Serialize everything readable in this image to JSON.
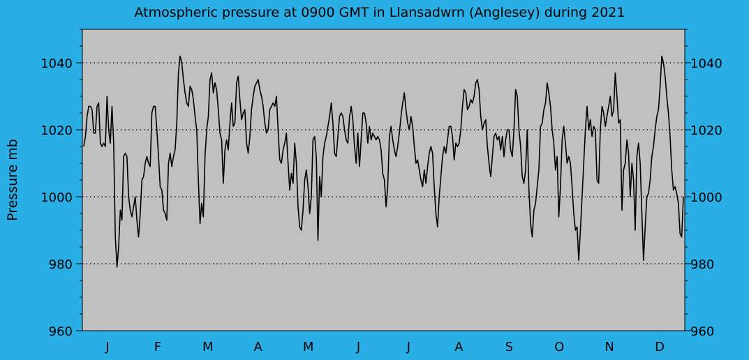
{
  "chart_data": {
    "type": "line",
    "title": "Atmospheric pressure at 0900 GMT in Llansadwrn (Anglesey) during 2021",
    "ylabel": "Pressure mb",
    "xlabel": "",
    "ylim": [
      960,
      1050
    ],
    "yticks": [
      960,
      980,
      1000,
      1020,
      1040
    ],
    "grid": "horizontal dotted",
    "month_labels": [
      "J",
      "F",
      "M",
      "A",
      "M",
      "J",
      "J",
      "A",
      "S",
      "O",
      "N",
      "D"
    ],
    "colors": {
      "background": "#29aee6",
      "plot": "#c0c0c0",
      "line": "#000000"
    },
    "series": [
      {
        "values": [
          1015,
          1018,
          1024,
          1027,
          1027,
          1026,
          1019,
          1019,
          1027,
          1028,
          1016,
          1015,
          1016,
          1015,
          1030,
          1020,
          1016,
          1027,
          1016,
          988,
          979,
          985,
          996,
          993,
          1012,
          1013,
          1012,
          1000,
          996,
          994,
          997,
          1000,
          993,
          988,
          995,
          1005,
          1006,
          1010,
          1012,
          1010,
          1009,
          1025,
          1027,
          1027,
          1020,
          1012,
          1003,
          1002,
          996,
          995,
          993,
          1010,
          1013,
          1009,
          1012,
          1014,
          1022,
          1037,
          1042,
          1040,
          1035,
          1031,
          1028,
          1027,
          1033,
          1032,
          1029,
          1024,
          1020,
          1005,
          992,
          998,
          994,
          1012,
          1020,
          1024,
          1035,
          1037,
          1031,
          1034,
          1032,
          1026,
          1019,
          1017,
          1004,
          1014,
          1017,
          1014,
          1022,
          1028,
          1021,
          1022,
          1034,
          1036,
          1029,
          1023,
          1025,
          1026,
          1016,
          1013,
          1018,
          1026,
          1030,
          1033,
          1034,
          1035,
          1032,
          1030,
          1027,
          1022,
          1019,
          1020,
          1026,
          1027,
          1028,
          1027,
          1030,
          1020,
          1011,
          1010,
          1014,
          1016,
          1019,
          1010,
          1002,
          1007,
          1004,
          1016,
          1010,
          997,
          991,
          990,
          996,
          1005,
          1008,
          1003,
          995,
          1000,
          1017,
          1018,
          1012,
          987,
          1006,
          1000,
          1012,
          1016,
          1018,
          1021,
          1024,
          1028,
          1022,
          1013,
          1012,
          1018,
          1024,
          1025,
          1024,
          1020,
          1017,
          1016,
          1024,
          1027,
          1023,
          1015,
          1010,
          1019,
          1009,
          1017,
          1025,
          1025,
          1022,
          1016,
          1021,
          1017,
          1019,
          1018,
          1017,
          1018,
          1017,
          1014,
          1007,
          1005,
          997,
          1003,
          1018,
          1021,
          1017,
          1014,
          1012,
          1015,
          1019,
          1024,
          1028,
          1031,
          1026,
          1022,
          1020,
          1024,
          1021,
          1015,
          1010,
          1011,
          1008,
          1005,
          1003,
          1008,
          1004,
          1009,
          1013,
          1015,
          1013,
          1003,
          995,
          991,
          1000,
          1006,
          1012,
          1015,
          1013,
          1017,
          1021,
          1021,
          1018,
          1011,
          1016,
          1015,
          1016,
          1020,
          1027,
          1032,
          1031,
          1026,
          1027,
          1029,
          1028,
          1030,
          1034,
          1035,
          1032,
          1024,
          1020,
          1022,
          1023,
          1015,
          1010,
          1006,
          1012,
          1018,
          1019,
          1017,
          1018,
          1014,
          1018,
          1012,
          1017,
          1020,
          1020,
          1014,
          1012,
          1020,
          1032,
          1030,
          1020,
          1015,
          1006,
          1004,
          1008,
          1020,
          1002,
          992,
          988,
          996,
          998,
          1003,
          1008,
          1021,
          1022,
          1026,
          1028,
          1034,
          1031,
          1027,
          1020,
          1016,
          1008,
          1012,
          994,
          1003,
          1017,
          1021,
          1016,
          1010,
          1012,
          1010,
          1003,
          995,
          990,
          991,
          981,
          990,
          1000,
          1010,
          1020,
          1027,
          1020,
          1023,
          1018,
          1021,
          1020,
          1005,
          1004,
          1020,
          1027,
          1025,
          1021,
          1024,
          1027,
          1030,
          1024,
          1026,
          1037,
          1030,
          1022,
          1023,
          996,
          1008,
          1010,
          1017,
          1013,
          1000,
          1010,
          1005,
          990,
          1012,
          1016,
          1010,
          995,
          981,
          991,
          1000,
          1001,
          1005,
          1012,
          1015,
          1020,
          1024,
          1026,
          1033,
          1042,
          1040,
          1036,
          1030,
          1025,
          1018,
          1008,
          1002,
          1003,
          1001,
          998,
          989,
          988,
          1000
        ]
      }
    ]
  }
}
